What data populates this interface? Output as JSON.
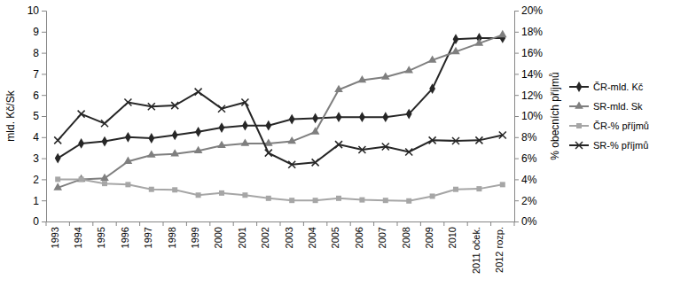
{
  "chart_data": {
    "type": "line",
    "y_label": "mld. Kč/Sk",
    "y2_label": "% obecních příjmů",
    "categories": [
      "1993",
      "1994",
      "1995",
      "1996",
      "1997",
      "1998",
      "1999",
      "2000",
      "2001",
      "2002",
      "2003",
      "2004",
      "2005",
      "2006",
      "2007",
      "2008",
      "2009",
      "2010",
      "2011 oček.",
      "2012 rozp."
    ],
    "ylim": [
      0,
      10
    ],
    "yticks": [
      0,
      1,
      2,
      3,
      4,
      5,
      6,
      7,
      8,
      9,
      10
    ],
    "y2lim": [
      0,
      20
    ],
    "y2ticks": [
      {
        "value": 0,
        "label": "0%"
      },
      {
        "value": 2,
        "label": "2%"
      },
      {
        "value": 4,
        "label": "4%"
      },
      {
        "value": 6,
        "label": "6%"
      },
      {
        "value": 8,
        "label": "8%"
      },
      {
        "value": 10,
        "label": "10%"
      },
      {
        "value": 12,
        "label": "12%"
      },
      {
        "value": 14,
        "label": "14%"
      },
      {
        "value": 16,
        "label": "16%"
      },
      {
        "value": 18,
        "label": "18%"
      },
      {
        "value": 20,
        "label": "20%"
      }
    ],
    "grid": false,
    "legend": "right",
    "series": [
      {
        "name": "ČR-mld. Kč",
        "color": "#262626",
        "marker": "diamond",
        "values": [
          3.0,
          3.7,
          3.8,
          4.0,
          3.95,
          4.1,
          4.25,
          4.45,
          4.55,
          4.55,
          4.85,
          4.9,
          4.95,
          4.95,
          4.95,
          5.1,
          6.3,
          8.65,
          8.7,
          8.7
        ]
      },
      {
        "name": "SR-mld. Sk",
        "color": "#7f7f7f",
        "marker": "triangle",
        "values": [
          1.6,
          2.0,
          2.05,
          2.85,
          3.15,
          3.2,
          3.35,
          3.6,
          3.7,
          3.7,
          3.8,
          4.25,
          6.25,
          6.7,
          6.85,
          7.15,
          7.65,
          8.05,
          8.45,
          8.85
        ]
      },
      {
        "name": "ČR-% příjmů",
        "color": "#a6a6a6",
        "marker": "square",
        "axis": "y2",
        "values": [
          4.0,
          4.0,
          3.6,
          3.5,
          3.05,
          3.0,
          2.5,
          2.7,
          2.5,
          2.2,
          2.0,
          2.0,
          2.2,
          2.05,
          2.0,
          1.95,
          2.4,
          3.05,
          3.1,
          3.5
        ]
      },
      {
        "name": "SR-% příjmů",
        "color": "#262626",
        "marker": "x",
        "axis": "y2",
        "values": [
          7.7,
          10.2,
          9.3,
          11.3,
          10.9,
          11.0,
          12.3,
          10.7,
          11.3,
          6.5,
          5.4,
          5.6,
          7.3,
          6.8,
          7.1,
          6.6,
          7.7,
          7.65,
          7.7,
          8.2
        ]
      }
    ]
  }
}
